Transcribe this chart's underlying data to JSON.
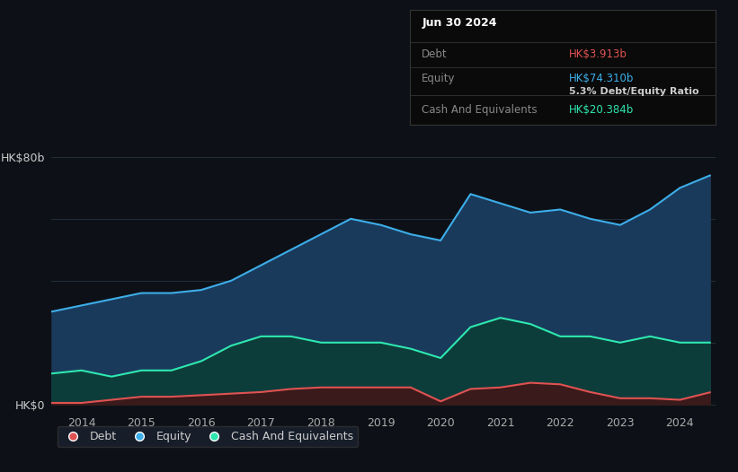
{
  "background_color": "#0d1117",
  "plot_bg_color": "#0d1117",
  "y_label_top": "HK$80b",
  "y_label_bottom": "HK$0",
  "x_ticks": [
    "2014",
    "2015",
    "2016",
    "2017",
    "2018",
    "2019",
    "2020",
    "2021",
    "2022",
    "2023",
    "2024"
  ],
  "legend_items": [
    "Debt",
    "Equity",
    "Cash And Equivalents"
  ],
  "legend_colors": [
    "#e05252",
    "#3daee9",
    "#2ee8b0"
  ],
  "tooltip_bg": "#0a0a0a",
  "tooltip_border": "#333333",
  "tooltip_title": "Jun 30 2024",
  "tooltip_debt_label": "Debt",
  "tooltip_debt_value": "HK$3.913b",
  "tooltip_debt_color": "#e05252",
  "tooltip_equity_label": "Equity",
  "tooltip_equity_value": "HK$74.310b",
  "tooltip_equity_color": "#3daee9",
  "tooltip_ratio_label": "5.3% Debt/Equity Ratio",
  "tooltip_cash_label": "Cash And Equivalents",
  "tooltip_cash_value": "HK$20.384b",
  "tooltip_cash_color": "#2ee8b0",
  "equity_color": "#3daee9",
  "equity_fill": "#1a3a5c",
  "cash_color": "#2ee8b0",
  "cash_fill": "#0d3d3a",
  "debt_color": "#e05252",
  "debt_fill": "#3a1a1a",
  "years": [
    2013.5,
    2014.0,
    2014.5,
    2015.0,
    2015.5,
    2016.0,
    2016.5,
    2017.0,
    2017.5,
    2018.0,
    2018.5,
    2019.0,
    2019.5,
    2020.0,
    2020.5,
    2021.0,
    2021.5,
    2022.0,
    2022.5,
    2023.0,
    2023.5,
    2024.0,
    2024.5
  ],
  "equity": [
    30,
    32,
    34,
    36,
    36,
    37,
    40,
    45,
    50,
    55,
    60,
    58,
    55,
    53,
    68,
    65,
    62,
    63,
    60,
    58,
    63,
    70,
    74
  ],
  "cash": [
    10,
    11,
    9,
    11,
    11,
    14,
    19,
    22,
    22,
    20,
    20,
    20,
    18,
    15,
    25,
    28,
    26,
    22,
    22,
    20,
    22,
    20,
    20
  ],
  "debt": [
    0.5,
    0.5,
    1.5,
    2.5,
    2.5,
    3.0,
    3.5,
    4.0,
    5.0,
    5.5,
    5.5,
    5.5,
    5.5,
    1.0,
    5.0,
    5.5,
    7.0,
    6.5,
    4.0,
    2.0,
    2.0,
    1.5,
    3.9
  ]
}
